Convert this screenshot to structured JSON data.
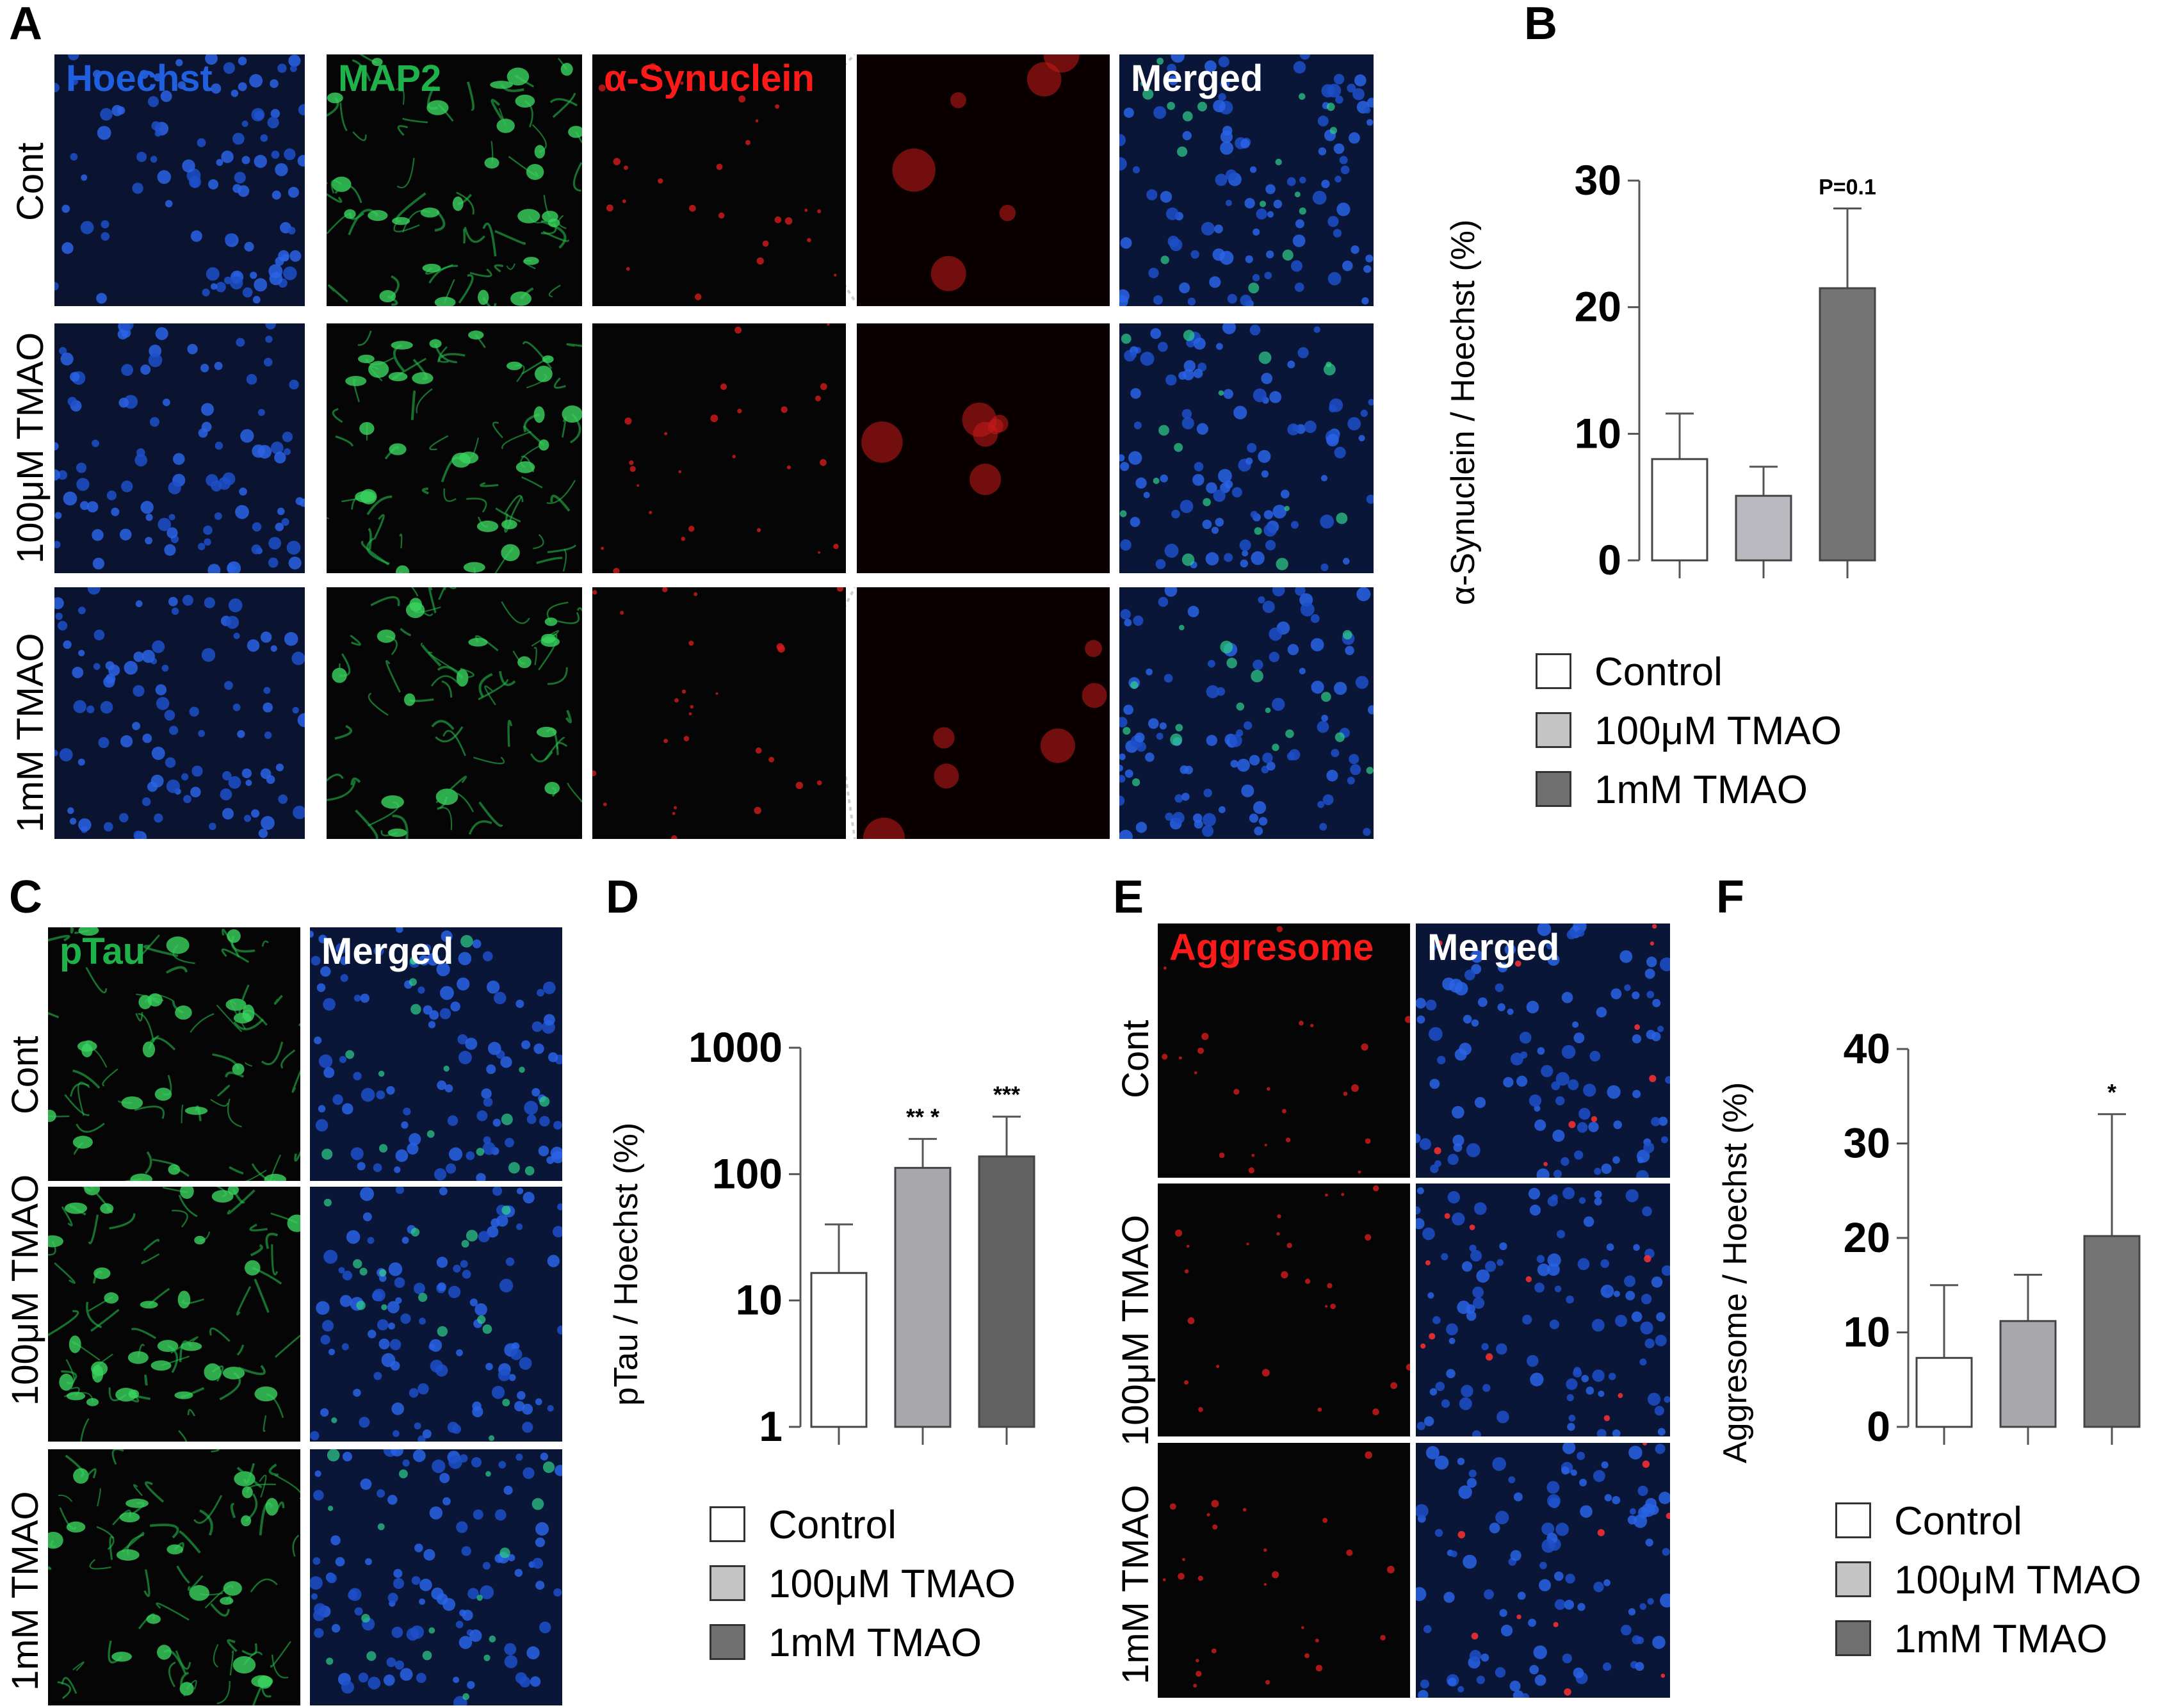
{
  "figure": {
    "panels": {
      "A": {
        "letter": "A",
        "channels": [
          "Hoechst",
          "MAP2",
          "α-Synuclein",
          "",
          "Merged"
        ],
        "channel_colors": [
          "#1f5fe0",
          "#20b24a",
          "#ff1a1a",
          "#ffffff",
          "#ffffff"
        ],
        "rows": [
          "Cont",
          "100μM TMAO",
          "1mM TMAO"
        ]
      },
      "B": {
        "letter": "B",
        "annotation": "P=0.1"
      },
      "C": {
        "letter": "C",
        "channels": [
          "pTau",
          "Merged"
        ],
        "channel_colors": [
          "#20b24a",
          "#ffffff"
        ],
        "rows": [
          "Cont",
          "100μM TMAO",
          "1mM TMAO"
        ]
      },
      "D": {
        "letter": "D",
        "annotations": [
          "** *",
          "***"
        ]
      },
      "E": {
        "letter": "E",
        "channels": [
          "Aggresome",
          "Merged"
        ],
        "channel_colors": [
          "#ff1a1a",
          "#ffffff"
        ],
        "rows": [
          "Cont",
          "100μM TMAO",
          "1mM TMAO"
        ]
      },
      "F": {
        "letter": "F",
        "annotation": "*"
      }
    },
    "legend": [
      "Control",
      "100μM TMAO",
      "1mM TMAO"
    ],
    "group_colors": [
      "#ffffff",
      "#b9b9bf",
      "#6e6e6e"
    ]
  },
  "chart_data": [
    {
      "panel": "B",
      "type": "bar",
      "categories": [
        "Control",
        "100μM TMAO",
        "1mM TMAO"
      ],
      "values": [
        8.0,
        5.1,
        21.5
      ],
      "errors": [
        3.6,
        2.3,
        6.3
      ],
      "ylabel": "α-Synuclein / Hoechst (%)",
      "ylim": [
        0,
        30
      ],
      "yticks": [
        0,
        10,
        20,
        30
      ],
      "scale": "linear",
      "colors": [
        "#ffffff",
        "#b9b9bf",
        "#747474"
      ],
      "annotations": [
        "",
        "",
        "P=0.1"
      ]
    },
    {
      "panel": "D",
      "type": "bar",
      "categories": [
        "Control",
        "100μM TMAO",
        "1mM TMAO"
      ],
      "values": [
        16.5,
        112,
        138
      ],
      "errors": [
        23.5,
        78,
        147
      ],
      "ylabel": "pTau / Hoechst (%)",
      "ylim": [
        1,
        1000
      ],
      "yticks": [
        1,
        10,
        100,
        1000
      ],
      "scale": "log",
      "colors": [
        "#ffffff",
        "#a8a8ad",
        "#626262"
      ],
      "annotations": [
        "",
        "** *",
        "***"
      ]
    },
    {
      "panel": "F",
      "type": "bar",
      "categories": [
        "Control",
        "100μM TMAO",
        "1mM TMAO"
      ],
      "values": [
        7.3,
        11.2,
        20.2
      ],
      "errors": [
        7.7,
        4.9,
        12.9
      ],
      "ylabel": "Aggresome / Hoechst (%)",
      "ylim": [
        0,
        40
      ],
      "yticks": [
        0,
        10,
        20,
        30,
        40
      ],
      "scale": "linear",
      "colors": [
        "#ffffff",
        "#a8a8ad",
        "#747474"
      ],
      "annotations": [
        "",
        "",
        "*"
      ]
    }
  ]
}
